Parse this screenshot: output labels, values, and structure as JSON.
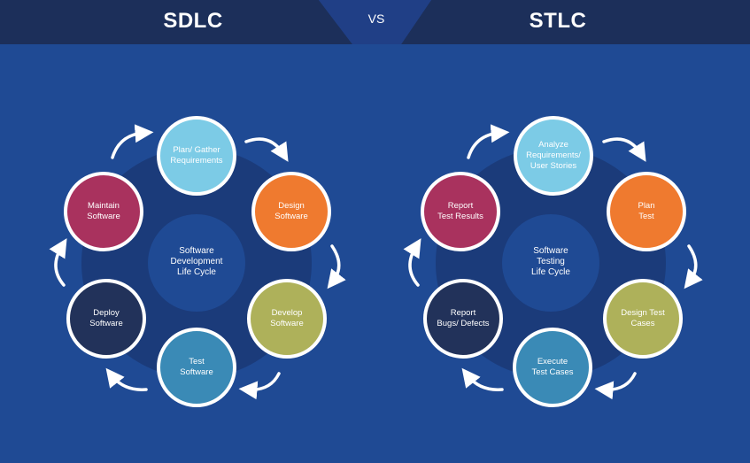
{
  "header": {
    "left_title": "SDLC",
    "right_title": "STLC",
    "vs_label": "VS"
  },
  "sdlc": {
    "center": "Software\nDevelopment\nLife Cycle",
    "nodes": [
      {
        "label": "Plan/ Gather\nRequirements",
        "color": "#7ccbe6"
      },
      {
        "label": "Design\nSoftware",
        "color": "#ef7a2f"
      },
      {
        "label": "Develop\nSoftware",
        "color": "#aeb15a"
      },
      {
        "label": "Test\nSoftware",
        "color": "#3a8ab6"
      },
      {
        "label": "Deploy\nSoftware",
        "color": "#22325a"
      },
      {
        "label": "Maintain\nSoftware",
        "color": "#a9325e"
      }
    ]
  },
  "stlc": {
    "center": "Software\nTesting\nLife Cycle",
    "nodes": [
      {
        "label": "Analyze\nRequirements/\nUser Stories",
        "color": "#7ccbe6"
      },
      {
        "label": "Plan\nTest",
        "color": "#ef7a2f"
      },
      {
        "label": "Design Test\nCases",
        "color": "#aeb15a"
      },
      {
        "label": "Execute\nTest Cases",
        "color": "#3a8ab6"
      },
      {
        "label": "Report\nBugs/ Defects",
        "color": "#22325a"
      },
      {
        "label": "Report\nTest Results",
        "color": "#a9325e"
      }
    ]
  },
  "colors": {
    "background": "#1f4a94",
    "banner": "#1c2f5a",
    "ring": "#1b3b7a",
    "arrow": "#ffffff"
  }
}
